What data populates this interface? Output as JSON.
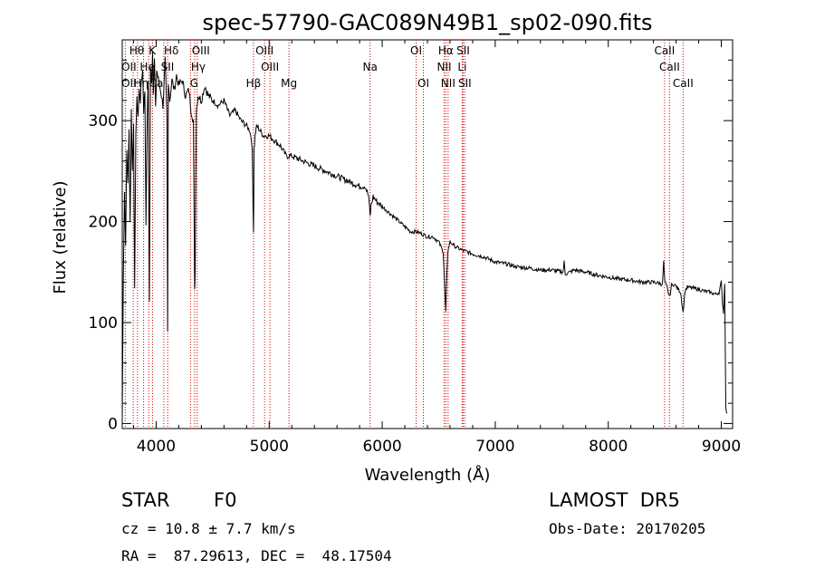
{
  "chart_data": {
    "type": "line",
    "title": "spec-57790-GAC089N49B1_sp02-090.fits",
    "xlabel": "Wavelength (Å)",
    "ylabel": "Flux (relative)",
    "xlim": [
      3700,
      9100
    ],
    "ylim": [
      -5,
      380
    ],
    "xticks": [
      4000,
      5000,
      6000,
      7000,
      8000,
      9000
    ],
    "yticks": [
      0,
      100,
      200,
      300
    ],
    "grid": false,
    "line_color": "#000000",
    "marker_color": "#cc0000",
    "series": [
      {
        "x": [
          3700,
          3710,
          3720,
          3730,
          3740,
          3750,
          3760,
          3770,
          3780,
          3790,
          3800,
          3810,
          3820,
          3830,
          3840,
          3850,
          3860,
          3870,
          3880,
          3890,
          3900,
          3910,
          3920,
          3930,
          3940,
          3950,
          3960,
          3968,
          3975,
          3985,
          3995,
          4005,
          4020,
          4040,
          4060,
          4080,
          4095,
          4101,
          4108,
          4120,
          4140,
          4160,
          4180,
          4200,
          4230,
          4260,
          4290,
          4310,
          4330,
          4340,
          4345,
          4355,
          4370,
          4400,
          4430,
          4460,
          4500,
          4550,
          4600,
          4650,
          4700,
          4750,
          4800,
          4830,
          4850,
          4858,
          4862,
          4866,
          4875,
          4890,
          4920,
          4950,
          5000,
          5050,
          5100,
          5150,
          5200,
          5300,
          5400,
          5500,
          5600,
          5700,
          5800,
          5850,
          5880,
          5893,
          5900,
          5920,
          5950,
          6000,
          6050,
          6100,
          6150,
          6200,
          6250,
          6300,
          6350,
          6400,
          6450,
          6500,
          6540,
          6555,
          6563,
          6570,
          6580,
          6600,
          6650,
          6700,
          6750,
          6800,
          6900,
          7000,
          7100,
          7200,
          7300,
          7400,
          7500,
          7600,
          7610,
          7620,
          7700,
          7800,
          7900,
          8000,
          8100,
          8200,
          8300,
          8400,
          8450,
          8480,
          8490,
          8500,
          8520,
          8542,
          8560,
          8580,
          8600,
          8640,
          8662,
          8680,
          8700,
          8750,
          8800,
          8850,
          8900,
          8950,
          8980,
          9000,
          9010,
          9020,
          9030,
          9040,
          9050
        ],
        "y": [
          5,
          150,
          230,
          180,
          270,
          240,
          290,
          200,
          310,
          250,
          300,
          130,
          290,
          320,
          305,
          330,
          320,
          340,
          350,
          310,
          330,
          200,
          300,
          340,
          120,
          350,
          340,
          370,
          330,
          360,
          310,
          350,
          340,
          330,
          315,
          360,
          300,
          90,
          340,
          320,
          340,
          330,
          345,
          335,
          340,
          325,
          330,
          310,
          300,
          130,
          150,
          310,
          325,
          320,
          335,
          325,
          320,
          315,
          320,
          305,
          310,
          300,
          295,
          290,
          275,
          210,
          190,
          270,
          285,
          295,
          290,
          285,
          285,
          280,
          275,
          265,
          265,
          260,
          255,
          250,
          245,
          240,
          235,
          235,
          225,
          205,
          215,
          225,
          220,
          215,
          210,
          205,
          200,
          195,
          190,
          190,
          188,
          185,
          185,
          180,
          170,
          130,
          110,
          140,
          170,
          180,
          175,
          172,
          170,
          168,
          165,
          160,
          158,
          155,
          154,
          152,
          152,
          150,
          160,
          148,
          152,
          150,
          147,
          145,
          143,
          142,
          140,
          140,
          139,
          138,
          160,
          140,
          135,
          125,
          137,
          138,
          136,
          130,
          110,
          132,
          135,
          134,
          133,
          131,
          130,
          128,
          130,
          140,
          120,
          110,
          140,
          15,
          10
        ]
      }
    ],
    "lines": [
      {
        "label": "Hβ",
        "x": 4861
      },
      {
        "label": "OIII",
        "x": 4959
      },
      {
        "label": "OIII",
        "x": 5007
      },
      {
        "label": "Mg",
        "x": 5175
      },
      {
        "label": "Na",
        "x": 5893
      },
      {
        "label": "OI",
        "x": 6300
      },
      {
        "label": "OI",
        "x": 6364
      },
      {
        "label": "Hα",
        "x": 6563
      },
      {
        "label": "NII",
        "x": 6548
      },
      {
        "label": "NII",
        "x": 6583
      },
      {
        "label": "SII",
        "x": 6716
      },
      {
        "label": "Li",
        "x": 6708
      },
      {
        "label": "SII",
        "x": 6731
      },
      {
        "label": "CaII",
        "x": 8498
      },
      {
        "label": "CaII",
        "x": 8542
      },
      {
        "label": "CaII",
        "x": 8662
      }
    ],
    "blue_labels": [
      {
        "text": "Hθ",
        "x": 3797,
        "row": 0
      },
      {
        "text": "K",
        "x": 3934,
        "row": 0
      },
      {
        "text": "Hδ",
        "x": 4102,
        "row": 0
      },
      {
        "text": "OIII",
        "x": 4363,
        "row": 0
      },
      {
        "text": "OII",
        "x": 3727,
        "row": 1
      },
      {
        "text": "He",
        "x": 3889,
        "row": 1
      },
      {
        "text": "SII",
        "x": 4068,
        "row": 1
      },
      {
        "text": "Hγ",
        "x": 4340,
        "row": 1
      },
      {
        "text": "OII",
        "x": 3727,
        "row": 2
      },
      {
        "text": "Hη",
        "x": 3835,
        "row": 2
      },
      {
        "text": "Ca",
        "x": 3968,
        "row": 2
      },
      {
        "text": "G",
        "x": 4304,
        "row": 2
      }
    ],
    "blue_line_x": [
      3727,
      3797,
      3835,
      3889,
      3934,
      3968,
      4068,
      4102,
      4304,
      4340,
      4363
    ]
  },
  "footer": {
    "object_class": "STAR",
    "subclass": "F0",
    "survey": "LAMOST  DR5",
    "cz": "cz = 10.8 ± 7.7 km/s",
    "obs_date": "Obs-Date: 20170205",
    "coords": "RA =  87.29613, DEC =  48.17504"
  }
}
